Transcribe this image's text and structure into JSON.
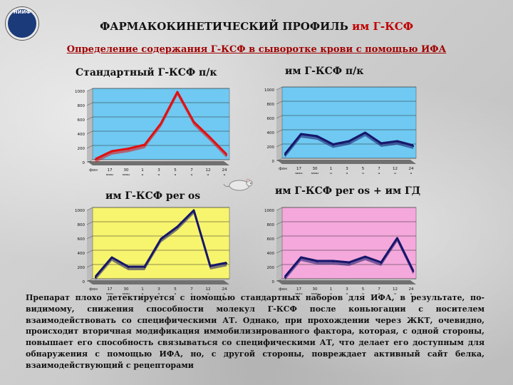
{
  "header": {
    "logo_text": "НИИФ",
    "title_main": "ФАРМАКОКИНЕТИЧЕСКИЙ ПРОФИЛЬ",
    "title_accent": "им Г-КСФ",
    "subtitle": "Определение содержания Г-КСФ в сыворотке крови с помощью ИФА"
  },
  "colors": {
    "red": "#e01010",
    "navy": "#16166a",
    "blue_bg": "#6fc9f2",
    "yellow_bg": "#f7f46e",
    "pink_bg": "#f4a8dc",
    "wall": "#bcbcbc",
    "floor": "#707070"
  },
  "chart_data": [
    {
      "type": "line",
      "title": "Стандартный Г-КСФ п/к",
      "x": [
        "фон",
        "17 мин",
        "30 мин",
        "1 ч",
        "3 ч",
        "5 ч",
        "7 ч",
        "12 ч",
        "24 ч"
      ],
      "y": [
        10,
        120,
        155,
        210,
        510,
        950,
        530,
        310,
        75
      ],
      "ylim": [
        0,
        1000
      ],
      "yticks": [
        0,
        200,
        400,
        600,
        800,
        1000
      ],
      "line_color": "#e01010",
      "background": "#6fc9f2",
      "grid": true
    },
    {
      "type": "line",
      "title": "им Г-КСФ п/к",
      "x": [
        "фон",
        "17 мин",
        "30 мин",
        "1 ч",
        "3 ч",
        "5 ч",
        "7 ч",
        "12 ч",
        "24 ч"
      ],
      "y": [
        60,
        340,
        310,
        195,
        240,
        360,
        210,
        240,
        180
      ],
      "ylim": [
        0,
        1000
      ],
      "yticks": [
        0,
        200,
        400,
        600,
        800,
        1000
      ],
      "line_color": "#16166a",
      "background": "#6fc9f2",
      "grid": true
    },
    {
      "type": "line",
      "title": "им Г-КСФ per os",
      "x": [
        "фон",
        "17 мин",
        "30 мин",
        "1 ч",
        "3 ч",
        "5 ч",
        "7 ч",
        "12 ч",
        "24 ч"
      ],
      "y": [
        30,
        300,
        170,
        170,
        560,
        730,
        960,
        180,
        225
      ],
      "ylim": [
        0,
        1000
      ],
      "yticks": [
        0,
        200,
        400,
        600,
        800,
        1000
      ],
      "line_color": "#16166a",
      "background": "#f7f46e",
      "grid": true
    },
    {
      "type": "line",
      "title": "им Г-КСФ per os + им ГД",
      "x": [
        "фон",
        "17 мин",
        "30 мин",
        "1 ч",
        "3 ч",
        "5 ч",
        "7 ч",
        "12 ч",
        "24 ч"
      ],
      "y": [
        30,
        300,
        250,
        250,
        230,
        310,
        230,
        570,
        110
      ],
      "ylim": [
        0,
        1000
      ],
      "yticks": [
        0,
        200,
        400,
        600,
        800,
        1000
      ],
      "line_color": "#16166a",
      "background": "#f4a8dc",
      "grid": true
    }
  ],
  "paragraph": "Препарат плохо детектируется с помощью стандартных наборов для ИФА, в результате, по-видимому, снижения способности молекул Г-КСФ после коньюгации с носителем взаимодействовать со специфическими АТ. Однако, при прохождении через ЖКТ, очевидно, происходит вторичная модификация иммобилизированного фактора, которая, с одной стороны, повышает его способность связываться со специфическими АТ, что делает его доступным для обнаружения с помощью ИФА, но, с другой стороны, повреждает активный сайт белка, взаимодействующий с рецепторами"
}
